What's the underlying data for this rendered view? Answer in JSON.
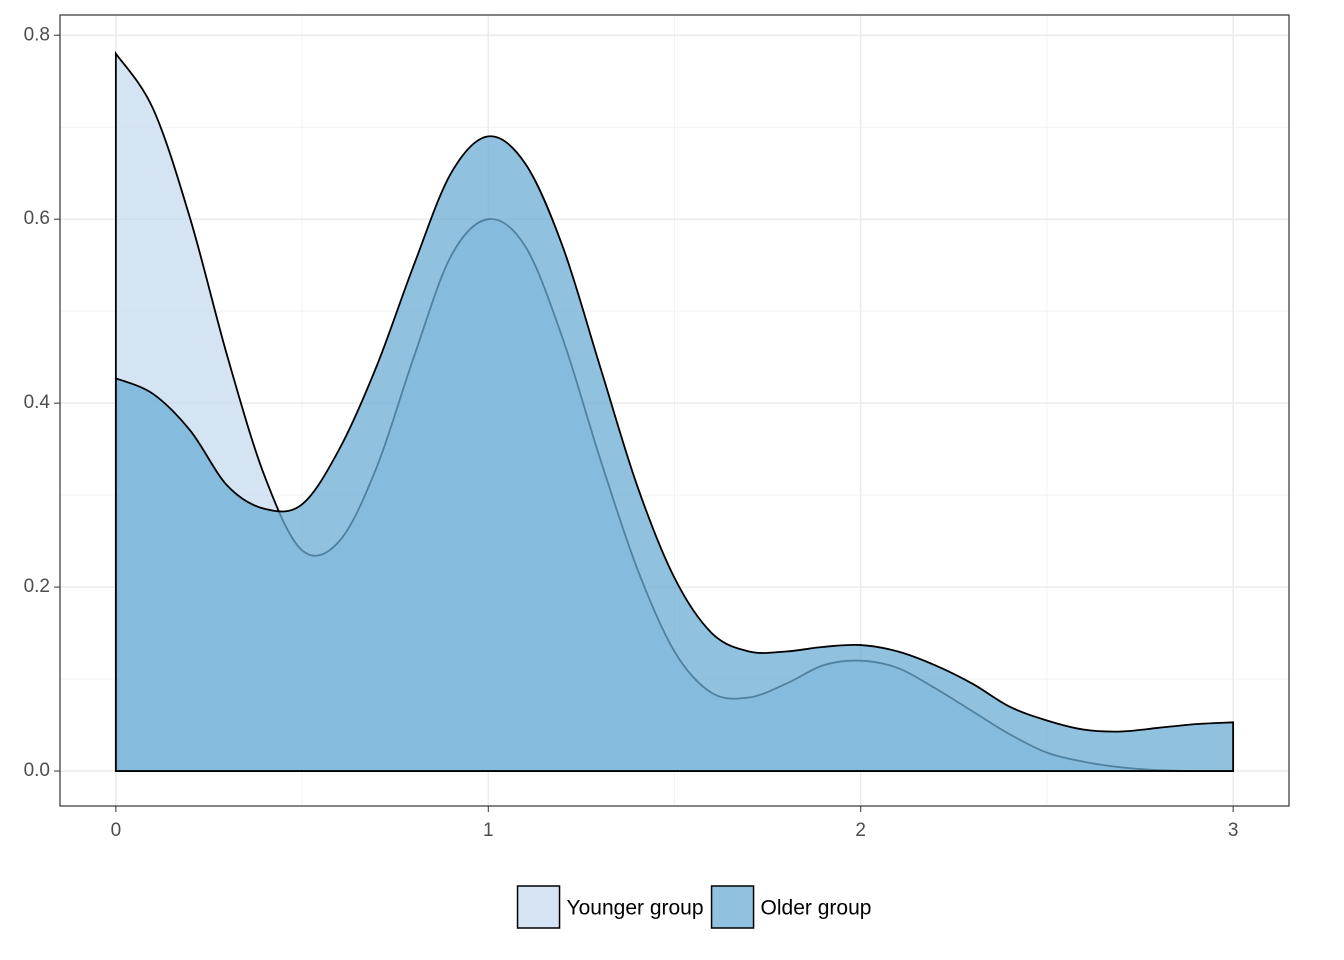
{
  "chart_data": {
    "type": "density",
    "x": [
      0,
      0.1,
      0.2,
      0.3,
      0.4,
      0.5,
      0.6,
      0.7,
      0.8,
      0.9,
      1.0,
      1.1,
      1.2,
      1.3,
      1.4,
      1.5,
      1.6,
      1.7,
      1.8,
      1.9,
      2.0,
      2.1,
      2.2,
      2.3,
      2.4,
      2.5,
      2.6,
      2.7,
      2.8,
      2.9,
      3.0
    ],
    "series": [
      {
        "name": "Younger group",
        "color": "#c6dbef",
        "values": [
          0.78,
          0.72,
          0.6,
          0.45,
          0.32,
          0.24,
          0.25,
          0.33,
          0.45,
          0.56,
          0.6,
          0.57,
          0.47,
          0.34,
          0.22,
          0.13,
          0.085,
          0.08,
          0.095,
          0.115,
          0.12,
          0.112,
          0.09,
          0.065,
          0.04,
          0.02,
          0.01,
          0.004,
          0.001,
          0,
          0
        ]
      },
      {
        "name": "Older group",
        "color": "#6baed6",
        "values": [
          0.427,
          0.41,
          0.37,
          0.31,
          0.285,
          0.29,
          0.35,
          0.44,
          0.55,
          0.65,
          0.69,
          0.66,
          0.57,
          0.44,
          0.31,
          0.21,
          0.15,
          0.13,
          0.13,
          0.135,
          0.137,
          0.13,
          0.115,
          0.095,
          0.07,
          0.055,
          0.045,
          0.043,
          0.047,
          0.051,
          0.053
        ]
      }
    ],
    "xlim": [
      -0.15,
      3.15
    ],
    "ylim": [
      -0.038,
      0.822
    ],
    "xticks": [
      0,
      1,
      2,
      3
    ],
    "yticks": [
      {
        "value": 0,
        "label": "0.0"
      },
      0.2,
      0.4,
      0.6,
      0.8
    ],
    "grid": true,
    "legend": "bottom"
  }
}
